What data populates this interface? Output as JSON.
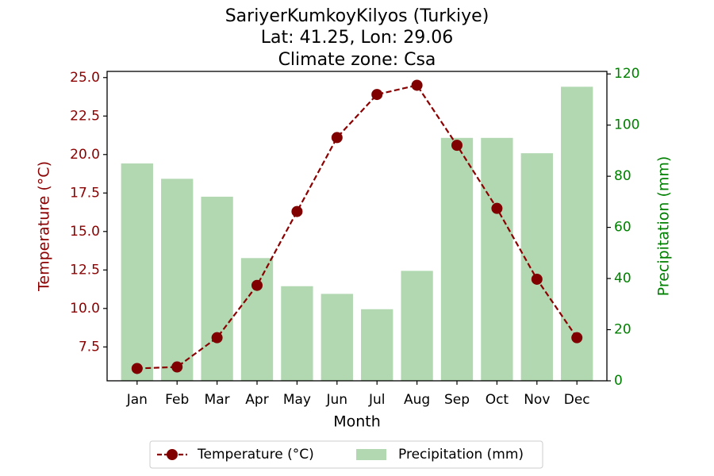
{
  "chart_data": {
    "type": "bar+line",
    "title_lines": [
      "SariyerKumkoyKilyos (Turkiye)",
      "Lat: 41.25, Lon: 29.06",
      "Climate zone: Csa"
    ],
    "xlabel": "Month",
    "ylabel_left": "Temperature (°C)",
    "ylabel_right": "Precipitation (mm)",
    "categories": [
      "Jan",
      "Feb",
      "Mar",
      "Apr",
      "May",
      "Jun",
      "Jul",
      "Aug",
      "Sep",
      "Oct",
      "Nov",
      "Dec"
    ],
    "temperature": [
      6.1,
      6.2,
      8.1,
      11.5,
      16.3,
      21.1,
      23.9,
      24.5,
      20.6,
      16.5,
      11.9,
      8.1
    ],
    "precipitation": [
      85,
      79,
      72,
      48,
      37,
      34,
      28,
      43,
      95,
      95,
      89,
      115
    ],
    "ylim_left": [
      5.3,
      25.4
    ],
    "ylim_right": [
      0,
      121
    ],
    "yticks_left": [
      "7.5",
      "10.0",
      "12.5",
      "15.0",
      "17.5",
      "20.0",
      "22.5",
      "25.0"
    ],
    "yticks_right": [
      "0",
      "20",
      "40",
      "60",
      "80",
      "100",
      "120"
    ],
    "legend": [
      "Temperature (°C)",
      "Precipitation (mm)"
    ],
    "legend_position": "bottom-center",
    "colors": {
      "temperature": "#8b0000",
      "precipitation": "#b2d8b2",
      "left_axis_text": "#8b0000",
      "right_axis_text": "#008000"
    }
  }
}
